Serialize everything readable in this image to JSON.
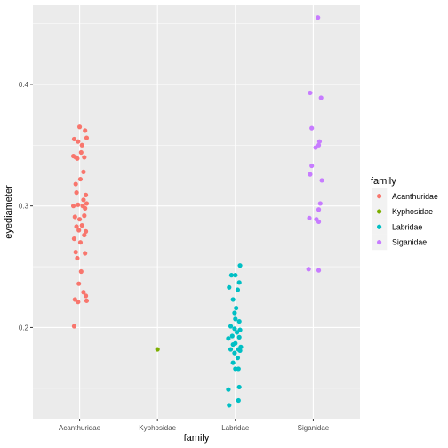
{
  "chart_data": {
    "type": "scatter",
    "xlabel": "family",
    "ylabel": "eyediameter",
    "categories": [
      "Acanthuridae",
      "Kyphosidae",
      "Labridae",
      "Siganidae"
    ],
    "yticks": [
      0.2,
      0.3,
      0.4
    ],
    "ytick_labels": [
      "0.2",
      "0.3",
      "0.4"
    ],
    "ylim": [
      0.125,
      0.465
    ],
    "grid": true,
    "jitter": true,
    "legend": {
      "title": "family",
      "position": "right"
    },
    "series": [
      {
        "name": "Acanthuridae",
        "color": "#F8766D",
        "points": [
          {
            "x": -0.07,
            "y": 0.355
          },
          {
            "x": 0.0,
            "y": 0.365
          },
          {
            "x": 0.07,
            "y": 0.362
          },
          {
            "x": -0.02,
            "y": 0.353
          },
          {
            "x": 0.03,
            "y": 0.35
          },
          {
            "x": 0.09,
            "y": 0.356
          },
          {
            "x": -0.05,
            "y": 0.34
          },
          {
            "x": 0.02,
            "y": 0.344
          },
          {
            "x": -0.08,
            "y": 0.341
          },
          {
            "x": -0.03,
            "y": 0.339
          },
          {
            "x": 0.06,
            "y": 0.34
          },
          {
            "x": 0.05,
            "y": 0.328
          },
          {
            "x": -0.05,
            "y": 0.318
          },
          {
            "x": 0.01,
            "y": 0.322
          },
          {
            "x": -0.04,
            "y": 0.311
          },
          {
            "x": 0.08,
            "y": 0.309
          },
          {
            "x": 0.05,
            "y": 0.305
          },
          {
            "x": 0.09,
            "y": 0.302
          },
          {
            "x": 0.04,
            "y": 0.3
          },
          {
            "x": 0.07,
            "y": 0.298
          },
          {
            "x": -0.08,
            "y": 0.3
          },
          {
            "x": -0.02,
            "y": 0.301
          },
          {
            "x": 0.06,
            "y": 0.292
          },
          {
            "x": 0.0,
            "y": 0.289
          },
          {
            "x": -0.06,
            "y": 0.291
          },
          {
            "x": 0.03,
            "y": 0.284
          },
          {
            "x": -0.04,
            "y": 0.283
          },
          {
            "x": -0.01,
            "y": 0.28
          },
          {
            "x": 0.08,
            "y": 0.279
          },
          {
            "x": 0.06,
            "y": 0.276
          },
          {
            "x": -0.07,
            "y": 0.273
          },
          {
            "x": 0.01,
            "y": 0.27
          },
          {
            "x": -0.05,
            "y": 0.262
          },
          {
            "x": 0.07,
            "y": 0.261
          },
          {
            "x": -0.03,
            "y": 0.257
          },
          {
            "x": 0.02,
            "y": 0.246
          },
          {
            "x": -0.01,
            "y": 0.236
          },
          {
            "x": 0.05,
            "y": 0.229
          },
          {
            "x": 0.08,
            "y": 0.226
          },
          {
            "x": -0.06,
            "y": 0.223
          },
          {
            "x": -0.02,
            "y": 0.221
          },
          {
            "x": 0.09,
            "y": 0.222
          },
          {
            "x": -0.07,
            "y": 0.201
          }
        ]
      },
      {
        "name": "Kyphosidae",
        "color": "#7CAE00",
        "points": [
          {
            "x": 0.0,
            "y": 0.182
          }
        ]
      },
      {
        "name": "Labridae",
        "color": "#00BFC4",
        "points": [
          {
            "x": 0.06,
            "y": 0.251
          },
          {
            "x": -0.05,
            "y": 0.243
          },
          {
            "x": 0.0,
            "y": 0.243
          },
          {
            "x": 0.05,
            "y": 0.237
          },
          {
            "x": -0.08,
            "y": 0.233
          },
          {
            "x": 0.03,
            "y": 0.231
          },
          {
            "x": -0.03,
            "y": 0.223
          },
          {
            "x": 0.01,
            "y": 0.216
          },
          {
            "x": -0.01,
            "y": 0.212
          },
          {
            "x": 0.0,
            "y": 0.207
          },
          {
            "x": 0.05,
            "y": 0.205
          },
          {
            "x": -0.06,
            "y": 0.201
          },
          {
            "x": -0.01,
            "y": 0.199
          },
          {
            "x": 0.06,
            "y": 0.198
          },
          {
            "x": 0.02,
            "y": 0.196
          },
          {
            "x": -0.04,
            "y": 0.193
          },
          {
            "x": 0.05,
            "y": 0.192
          },
          {
            "x": -0.09,
            "y": 0.191
          },
          {
            "x": 0.0,
            "y": 0.187
          },
          {
            "x": -0.03,
            "y": 0.186
          },
          {
            "x": 0.07,
            "y": 0.184
          },
          {
            "x": -0.06,
            "y": 0.182
          },
          {
            "x": 0.04,
            "y": 0.182
          },
          {
            "x": 0.06,
            "y": 0.181
          },
          {
            "x": -0.01,
            "y": 0.179
          },
          {
            "x": 0.03,
            "y": 0.175
          },
          {
            "x": -0.03,
            "y": 0.171
          },
          {
            "x": 0.0,
            "y": 0.166
          },
          {
            "x": 0.04,
            "y": 0.166
          },
          {
            "x": 0.05,
            "y": 0.151
          },
          {
            "x": -0.09,
            "y": 0.149
          },
          {
            "x": 0.04,
            "y": 0.14
          },
          {
            "x": -0.08,
            "y": 0.136
          }
        ]
      },
      {
        "name": "Siganidae",
        "color": "#C77CFF",
        "points": [
          {
            "x": 0.06,
            "y": 0.455
          },
          {
            "x": -0.04,
            "y": 0.393
          },
          {
            "x": 0.1,
            "y": 0.389
          },
          {
            "x": -0.02,
            "y": 0.364
          },
          {
            "x": 0.08,
            "y": 0.353
          },
          {
            "x": 0.07,
            "y": 0.35
          },
          {
            "x": 0.03,
            "y": 0.348
          },
          {
            "x": -0.02,
            "y": 0.333
          },
          {
            "x": -0.04,
            "y": 0.326
          },
          {
            "x": 0.11,
            "y": 0.321
          },
          {
            "x": 0.09,
            "y": 0.302
          },
          {
            "x": 0.07,
            "y": 0.297
          },
          {
            "x": -0.05,
            "y": 0.29
          },
          {
            "x": 0.04,
            "y": 0.289
          },
          {
            "x": 0.07,
            "y": 0.287
          },
          {
            "x": -0.06,
            "y": 0.248
          },
          {
            "x": 0.07,
            "y": 0.247
          }
        ]
      }
    ]
  }
}
